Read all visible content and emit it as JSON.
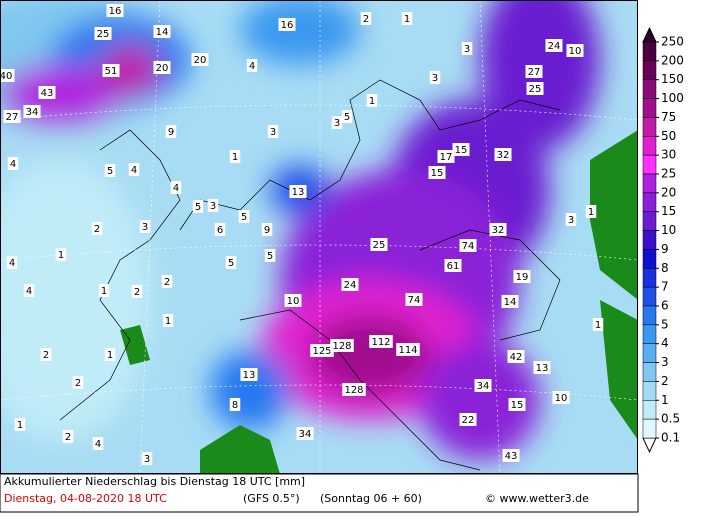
{
  "map": {
    "labels": [
      16,
      25,
      14,
      20,
      20,
      51,
      40,
      43,
      34,
      27,
      4,
      16,
      2,
      1,
      3,
      24,
      10,
      27,
      25,
      3,
      1,
      3,
      5,
      9,
      3,
      1,
      17,
      15,
      32,
      15,
      5,
      4,
      4,
      4,
      13,
      5,
      3,
      5,
      6,
      9,
      3,
      2,
      25,
      74,
      32,
      3,
      1,
      1,
      4,
      5,
      5,
      61,
      19,
      2,
      4,
      1,
      2,
      24,
      74,
      14,
      10,
      1,
      1,
      125,
      128,
      112,
      114,
      42,
      13,
      2,
      1,
      13,
      2,
      34,
      128,
      15,
      10,
      8,
      22,
      1,
      2,
      4,
      34,
      3,
      43
    ]
  },
  "legend": {
    "levels": [
      250,
      200,
      150,
      100,
      75,
      50,
      30,
      25,
      20,
      15,
      10,
      9,
      8,
      7,
      6,
      5,
      4,
      3,
      2,
      1,
      0.5,
      0.1
    ],
    "top_color": "#300030",
    "bottom_color": "#ffffff",
    "colors": [
      "#4a0040",
      "#6a005a",
      "#8a0a78",
      "#a0108e",
      "#c01ca8",
      "#e020d0",
      "#ff30ff",
      "#b020e0",
      "#8a20d8",
      "#6a1cd0",
      "#3a10c8",
      "#1010d0",
      "#1a30e0",
      "#2050e8",
      "#2878f0",
      "#3a98f0",
      "#58b0f0",
      "#80c8f0",
      "#a0dcf4",
      "#c0ecf8",
      "#e0f8fc"
    ]
  },
  "footer": {
    "title": "Akkumulierter Niederschlag bis Dienstag 18 UTC [mm]",
    "date": "Dienstag, 04-08-2020  18 UTC",
    "model": "(GFS 0.5°)",
    "run": "(Sonntag 06 + 60)",
    "credit": "© www.wetter3.de"
  }
}
